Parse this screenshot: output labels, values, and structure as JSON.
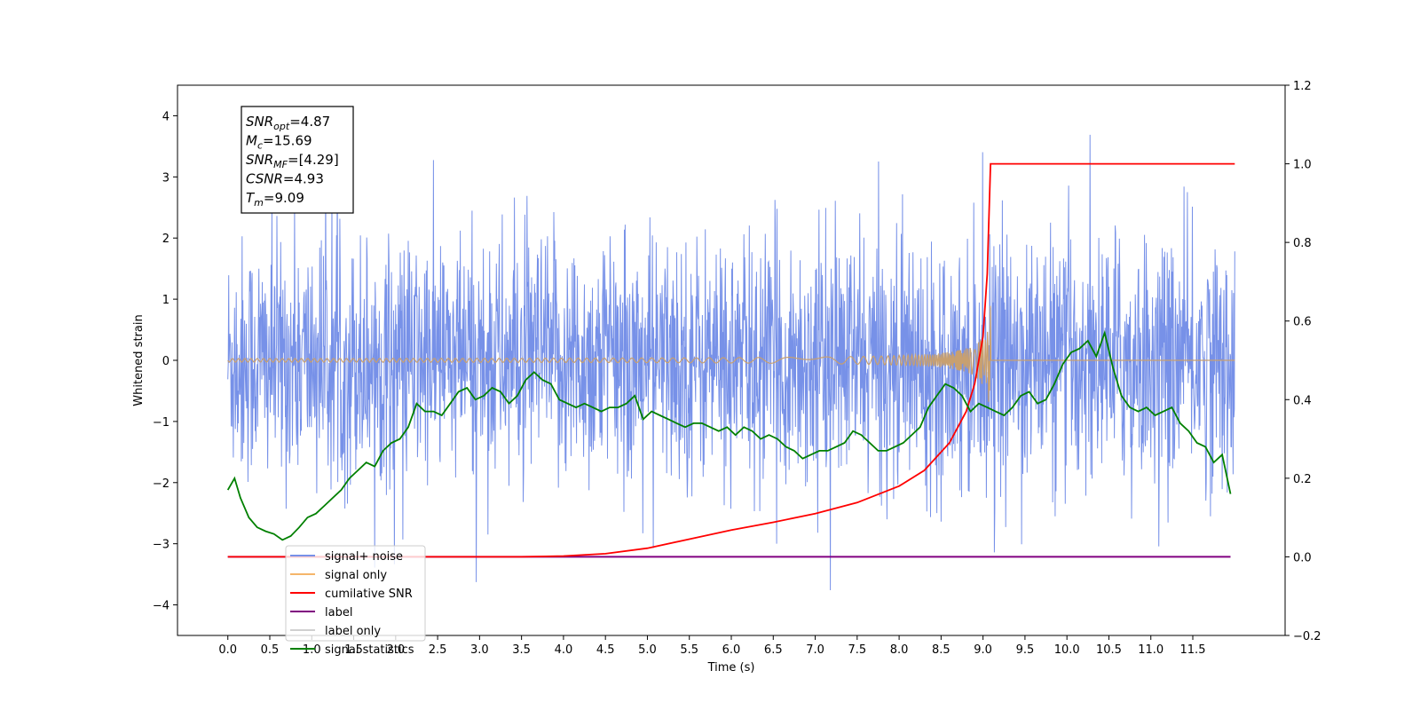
{
  "chart_data": {
    "type": "line",
    "xlabel": "Time (s)",
    "ylabel": "Whitened strain",
    "xlim": [
      -0.6,
      12.6
    ],
    "ylim": [
      -4.5,
      4.5
    ],
    "y2lim": [
      -0.2,
      1.2
    ],
    "x_ticks": [
      "0.0",
      "0.5",
      "1.0",
      "1.5",
      "2.0",
      "2.5",
      "3.0",
      "3.5",
      "4.0",
      "4.5",
      "5.0",
      "5.5",
      "6.0",
      "6.5",
      "7.0",
      "7.5",
      "8.0",
      "8.5",
      "9.0",
      "9.5",
      "10.0",
      "10.5",
      "11.0",
      "11.5"
    ],
    "y_ticks": [
      "4",
      "3",
      "2",
      "1",
      "0",
      "−1",
      "−2",
      "−3",
      "−4"
    ],
    "y2_ticks": [
      "1.2",
      "1.0",
      "0.8",
      "0.6",
      "0.4",
      "0.2",
      "0.0",
      "−0.2"
    ],
    "annotation": [
      {
        "base": "SNR",
        "sub": "opt",
        "value": "=4.87"
      },
      {
        "base": "M",
        "sub": "c",
        "value": "=15.69"
      },
      {
        "base": "SNR",
        "sub": "MF",
        "value": "=[4.29]"
      },
      {
        "base": "CSNR",
        "sub": "",
        "value": "=4.93"
      },
      {
        "base": "T",
        "sub": "m",
        "value": "=9.09"
      }
    ],
    "legend_position": "lower-left",
    "grid": false,
    "series": [
      {
        "name": "signal+ noise",
        "color": "#7791e8",
        "axis": "left",
        "x_range": [
          0,
          12
        ],
        "noise_std": 1.0,
        "spike_max": [
          4.1,
          -3.9
        ]
      },
      {
        "name": "signal only",
        "color": "#f5b56a",
        "axis": "left",
        "chirp_end": 9.09,
        "peak_amplitude": 1.0
      },
      {
        "name": "cumilative SNR",
        "color": "#ff0000",
        "axis": "right",
        "x": [
          0,
          3.5,
          4.0,
          4.5,
          5.0,
          5.5,
          6.0,
          6.5,
          7.0,
          7.5,
          8.0,
          8.3,
          8.6,
          8.8,
          8.9,
          9.0,
          9.05,
          9.09,
          12.0
        ],
        "y": [
          0,
          0,
          0.002,
          0.008,
          0.022,
          0.045,
          0.068,
          0.088,
          0.11,
          0.138,
          0.18,
          0.22,
          0.29,
          0.37,
          0.44,
          0.56,
          0.72,
          1.0,
          1.0
        ]
      },
      {
        "name": "label",
        "color": "#800080",
        "axis": "right",
        "x": [
          0,
          11.95
        ],
        "y": [
          0,
          0
        ]
      },
      {
        "name": "label only",
        "color": "#d0d0d0",
        "axis": "right"
      },
      {
        "name": "signal statistics",
        "color": "#008000",
        "axis": "right",
        "x": [
          0.0,
          0.08,
          0.15,
          0.25,
          0.35,
          0.45,
          0.55,
          0.65,
          0.75,
          0.85,
          0.95,
          1.05,
          1.15,
          1.25,
          1.35,
          1.45,
          1.55,
          1.65,
          1.75,
          1.85,
          1.95,
          2.05,
          2.15,
          2.25,
          2.35,
          2.45,
          2.55,
          2.65,
          2.75,
          2.85,
          2.95,
          3.05,
          3.15,
          3.25,
          3.35,
          3.45,
          3.55,
          3.65,
          3.75,
          3.85,
          3.95,
          4.05,
          4.15,
          4.25,
          4.35,
          4.45,
          4.55,
          4.65,
          4.75,
          4.85,
          4.95,
          5.05,
          5.15,
          5.25,
          5.35,
          5.45,
          5.55,
          5.65,
          5.75,
          5.85,
          5.95,
          6.05,
          6.15,
          6.25,
          6.35,
          6.45,
          6.55,
          6.65,
          6.75,
          6.85,
          6.95,
          7.05,
          7.15,
          7.25,
          7.35,
          7.45,
          7.55,
          7.65,
          7.75,
          7.85,
          7.95,
          8.05,
          8.15,
          8.25,
          8.35,
          8.45,
          8.55,
          8.65,
          8.75,
          8.85,
          8.95,
          9.05,
          9.15,
          9.25,
          9.35,
          9.45,
          9.55,
          9.65,
          9.75,
          9.85,
          9.95,
          10.05,
          10.15,
          10.25,
          10.35,
          10.45,
          10.55,
          10.65,
          10.75,
          10.85,
          10.95,
          11.05,
          11.15,
          11.25,
          11.35,
          11.45,
          11.55,
          11.65,
          11.75,
          11.85,
          11.95
        ],
        "y": [
          0.17,
          0.2,
          0.15,
          0.1,
          0.075,
          0.065,
          0.058,
          0.043,
          0.053,
          0.075,
          0.1,
          0.11,
          0.13,
          0.15,
          0.17,
          0.2,
          0.22,
          0.24,
          0.23,
          0.27,
          0.29,
          0.3,
          0.33,
          0.39,
          0.37,
          0.37,
          0.36,
          0.39,
          0.42,
          0.43,
          0.4,
          0.41,
          0.43,
          0.42,
          0.39,
          0.41,
          0.45,
          0.47,
          0.45,
          0.44,
          0.4,
          0.39,
          0.38,
          0.39,
          0.38,
          0.37,
          0.38,
          0.38,
          0.39,
          0.41,
          0.35,
          0.37,
          0.36,
          0.35,
          0.34,
          0.33,
          0.34,
          0.34,
          0.33,
          0.32,
          0.33,
          0.31,
          0.33,
          0.32,
          0.3,
          0.31,
          0.3,
          0.28,
          0.27,
          0.25,
          0.26,
          0.27,
          0.27,
          0.28,
          0.29,
          0.32,
          0.31,
          0.29,
          0.27,
          0.27,
          0.28,
          0.29,
          0.31,
          0.33,
          0.38,
          0.41,
          0.44,
          0.43,
          0.41,
          0.37,
          0.39,
          0.38,
          0.37,
          0.36,
          0.38,
          0.41,
          0.42,
          0.39,
          0.4,
          0.44,
          0.49,
          0.52,
          0.53,
          0.55,
          0.51,
          0.57,
          0.48,
          0.41,
          0.38,
          0.37,
          0.38,
          0.36,
          0.37,
          0.38,
          0.34,
          0.32,
          0.29,
          0.28,
          0.24,
          0.26,
          0.16
        ]
      }
    ]
  }
}
